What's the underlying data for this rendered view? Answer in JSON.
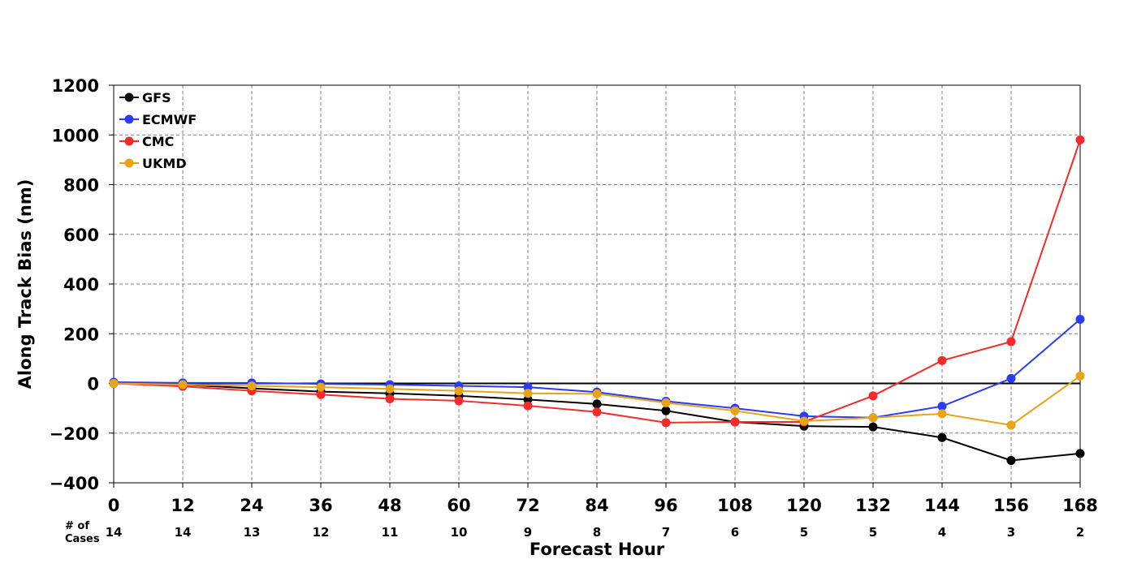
{
  "chart_data": {
    "type": "line",
    "xlabel": "Forecast Hour",
    "ylabel": "Along Track Bias (nm)",
    "x": [
      0,
      12,
      24,
      36,
      48,
      60,
      72,
      84,
      96,
      108,
      120,
      132,
      144,
      156,
      168
    ],
    "x_tick_labels": [
      "0",
      "12",
      "24",
      "36",
      "48",
      "60",
      "72",
      "84",
      "96",
      "108",
      "120",
      "132",
      "144",
      "156",
      "168"
    ],
    "y_tick_labels": [
      "1200",
      "1000",
      "800",
      "600",
      "400",
      "200",
      "0",
      "−200",
      "−400"
    ],
    "y_ticks": [
      1200,
      1000,
      800,
      600,
      400,
      200,
      0,
      -200,
      -400
    ],
    "xlim": [
      0,
      168
    ],
    "ylim": [
      -400,
      1200
    ],
    "grid": true,
    "legend_position": "top-left",
    "cases_label_line1": "# of",
    "cases_label_line2": "Cases",
    "cases": [
      "14",
      "14",
      "13",
      "12",
      "11",
      "10",
      "9",
      "8",
      "7",
      "6",
      "5",
      "5",
      "4",
      "3",
      "2"
    ],
    "series": [
      {
        "name": "GFS",
        "color": "#000000",
        "values": [
          0,
          -5,
          -20,
          -33,
          -40,
          -50,
          -65,
          -83,
          -110,
          -155,
          -172,
          -175,
          -218,
          -310,
          -282
        ]
      },
      {
        "name": "ECMWF",
        "color": "#2a3cf5",
        "values": [
          5,
          2,
          2,
          -2,
          -5,
          -10,
          -15,
          -35,
          -72,
          -100,
          -132,
          -138,
          -92,
          20,
          258
        ]
      },
      {
        "name": "CMC",
        "color": "#f52a2a",
        "values": [
          0,
          -12,
          -30,
          -45,
          -62,
          -70,
          -90,
          -115,
          -158,
          -155,
          -155,
          -50,
          92,
          168,
          980
        ]
      },
      {
        "name": "UKMD",
        "color": "#e8a317",
        "values": [
          0,
          -5,
          -10,
          -15,
          -22,
          -30,
          -40,
          -42,
          -78,
          -110,
          -152,
          -138,
          -122,
          -168,
          30
        ]
      }
    ]
  }
}
